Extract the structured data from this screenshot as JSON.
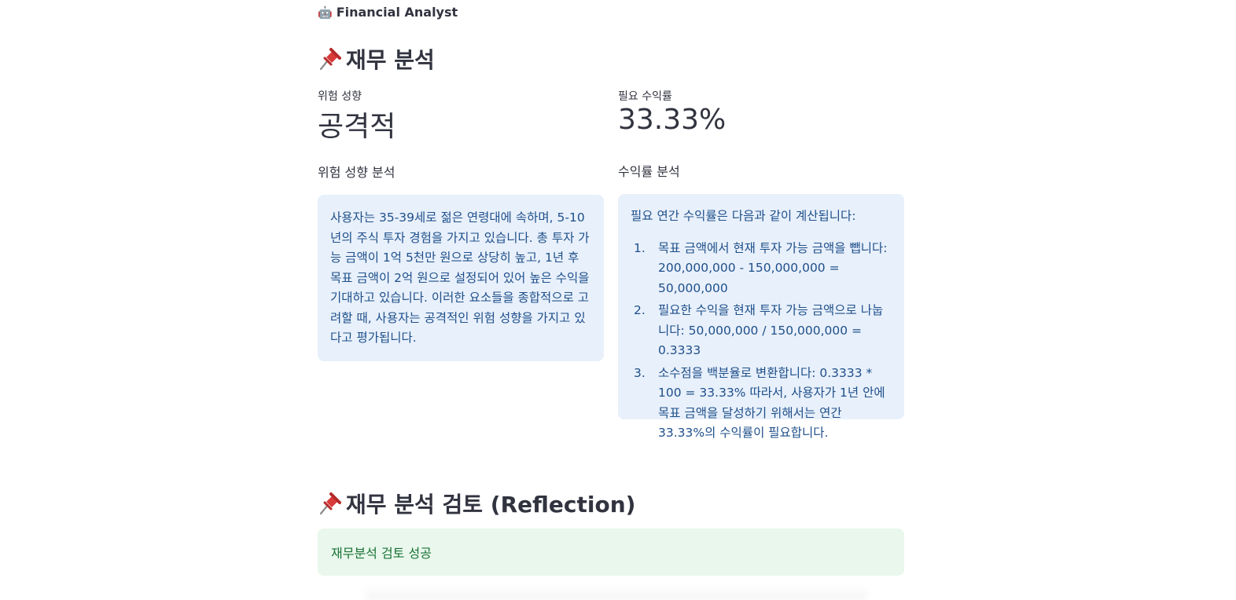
{
  "header": {
    "icon": "robot-icon",
    "title": "Financial Analyst"
  },
  "section1": {
    "icon": "pin-icon",
    "title": "재무 분석"
  },
  "metrics": {
    "risk": {
      "label": "위험 성향",
      "value": "공격적"
    },
    "return": {
      "label": "필요 수익률",
      "value": "33.33%"
    }
  },
  "risk_analysis": {
    "title": "위험 성향 분석",
    "text": "사용자는 35-39세로 젊은 연령대에 속하며, 5-10년의 주식 투자 경험을 가지고 있습니다. 총 투자 가능 금액이 1억 5천만 원으로 상당히 높고, 1년 후 목표 금액이 2억 원으로 설정되어 있어 높은 수익을 기대하고 있습니다. 이러한 요소들을 종합적으로 고려할 때, 사용자는 공격적인 위험 성향을 가지고 있다고 평가됩니다."
  },
  "return_analysis": {
    "title": "수익률 분석",
    "intro": "필요 연간 수익률은 다음과 같이 계산됩니다:",
    "steps": [
      {
        "num": "1.",
        "text": "목표 금액에서 현재 투자 가능 금액을 뺍니다: 200,000,000 - 150,000,000 = 50,000,000"
      },
      {
        "num": "2.",
        "text": "필요한 수익을 현재 투자 가능 금액으로 나눕니다: 50,000,000 / 150,000,000 = 0.3333"
      },
      {
        "num": "3.",
        "text": "소수점을 백분율로 변환합니다: 0.3333 * 100 = 33.33% 따라서, 사용자가 1년 안에 목표 금액을 달성하기 위해서는 연간 33.33%의 수익률이 필요합니다."
      }
    ]
  },
  "section2": {
    "icon": "pin-icon",
    "title": "재무 분석 검토 (Reflection)"
  },
  "reflection": {
    "status": "재무분석 검토 성공"
  },
  "colors": {
    "info_bg": "#e8f0fb",
    "info_text": "#1e4f8a",
    "success_bg": "#e9f7ec",
    "success_text": "#177233",
    "pin_red": "#d93a3a"
  }
}
